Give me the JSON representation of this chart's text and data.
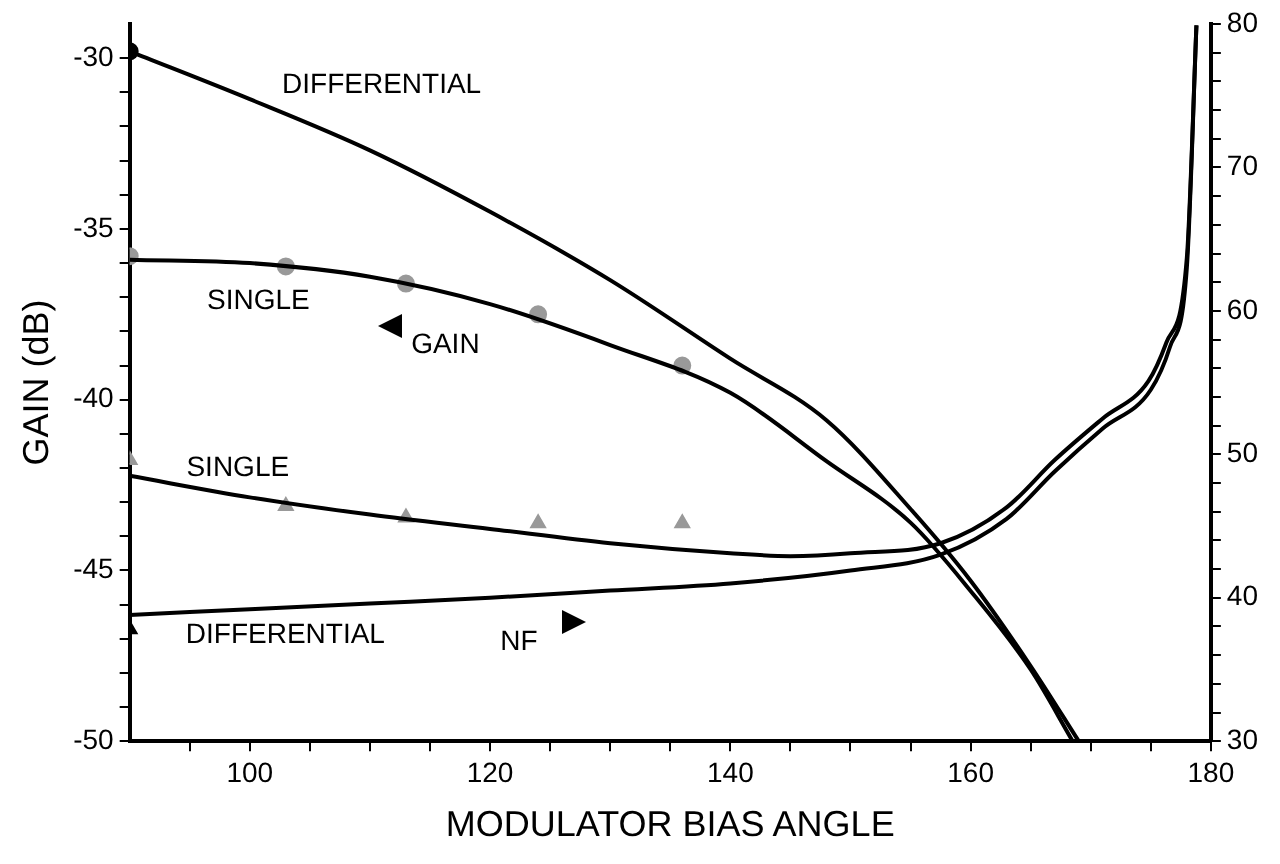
{
  "chart_data": {
    "type": "line",
    "xlabel": "MODULATOR BIAS ANGLE",
    "ylabel": "GAIN (dB)",
    "xlim": [
      90,
      180
    ],
    "xticks": [
      {
        "value": 95,
        "label": null
      },
      100,
      {
        "value": 105,
        "label": null
      },
      {
        "value": 110,
        "label": null
      },
      {
        "value": 115,
        "label": null
      },
      120,
      {
        "value": 125,
        "label": null
      },
      {
        "value": 130,
        "label": null
      },
      {
        "value": 135,
        "label": null
      },
      140,
      {
        "value": 145,
        "label": null
      },
      {
        "value": 150,
        "label": null
      },
      {
        "value": 155,
        "label": null
      },
      160,
      {
        "value": 165,
        "label": null
      },
      {
        "value": 170,
        "label": null
      },
      {
        "value": 175,
        "label": null
      },
      180
    ],
    "ylim": [
      -50,
      -29
    ],
    "yticks": [
      -50,
      {
        "value": -49,
        "label": null
      },
      {
        "value": -48,
        "label": null
      },
      {
        "value": -47,
        "label": null
      },
      {
        "value": -46,
        "label": null
      },
      -45,
      {
        "value": -44,
        "label": null
      },
      {
        "value": -43,
        "label": null
      },
      {
        "value": -42,
        "label": null
      },
      {
        "value": -41,
        "label": null
      },
      -40,
      {
        "value": -39,
        "label": null
      },
      {
        "value": -38,
        "label": null
      },
      {
        "value": -37,
        "label": null
      },
      {
        "value": -36,
        "label": null
      },
      -35,
      {
        "value": -34,
        "label": null
      },
      {
        "value": -33,
        "label": null
      },
      {
        "value": -32,
        "label": null
      },
      {
        "value": -31,
        "label": null
      },
      -30
    ],
    "y2lim": [
      30,
      80
    ],
    "y2ticks": [
      30,
      {
        "value": 32,
        "label": null
      },
      {
        "value": 34,
        "label": null
      },
      {
        "value": 36,
        "label": null
      },
      {
        "value": 38,
        "label": null
      },
      40,
      {
        "value": 42,
        "label": null
      },
      {
        "value": 44,
        "label": null
      },
      {
        "value": 46,
        "label": null
      },
      {
        "value": 48,
        "label": null
      },
      50,
      {
        "value": 52,
        "label": null
      },
      {
        "value": 54,
        "label": null
      },
      {
        "value": 56,
        "label": null
      },
      {
        "value": 58,
        "label": null
      },
      60,
      {
        "value": 62,
        "label": null
      },
      {
        "value": 64,
        "label": null
      },
      {
        "value": 66,
        "label": null
      },
      {
        "value": 68,
        "label": null
      },
      70,
      {
        "value": 72,
        "label": null
      },
      {
        "value": 74,
        "label": null
      },
      {
        "value": 76,
        "label": null
      },
      {
        "value": 78,
        "label": null
      },
      80
    ],
    "grid": false,
    "legend": false,
    "series": [
      {
        "type": "line",
        "color": "#000000",
        "marker": "none",
        "x": [
          90,
          100,
          110,
          120,
          130,
          140,
          148,
          155,
          160,
          165,
          169
        ],
        "values": [
          -29.8,
          -31.2,
          -32.7,
          -34.5,
          -36.5,
          -38.8,
          -40.6,
          -43.2,
          -45.3,
          -47.8,
          -50
        ]
      },
      {
        "type": "line",
        "color": "#000000",
        "marker": "none",
        "x": [
          90,
          100,
          110,
          120,
          130,
          140,
          148,
          155,
          160,
          165,
          168.5
        ],
        "values": [
          -35.9,
          -36.0,
          -36.4,
          -37.2,
          -38.4,
          -39.8,
          -41.8,
          -43.6,
          -45.6,
          -47.9,
          -50
        ]
      },
      {
        "type": "line",
        "axis": "y2",
        "color": "#000000",
        "marker": "none",
        "x": [
          90,
          100,
          110,
          120,
          130,
          140,
          145,
          150,
          157.5,
          163,
          167,
          171,
          174.8,
          176.3,
          178,
          178.8
        ],
        "values": [
          48.5,
          47.0,
          45.8,
          44.8,
          43.8,
          43.1,
          42.9,
          43.1,
          43.8,
          46.3,
          49.6,
          52.5,
          55.1,
          57.8,
          63.7,
          79.9
        ]
      },
      {
        "type": "line",
        "axis": "y2",
        "color": "#000000",
        "marker": "none",
        "x": [
          90,
          100,
          110,
          120,
          130,
          140,
          150,
          157.5,
          163,
          167,
          171,
          175,
          176.6,
          178,
          178.8
        ],
        "values": [
          38.8,
          39.2,
          39.6,
          40.0,
          40.5,
          41.0,
          41.9,
          43.0,
          45.5,
          48.8,
          51.8,
          54.5,
          57.5,
          63,
          79.9
        ]
      },
      {
        "type": "scatter",
        "color": "#000000",
        "marker": "circle",
        "x": [
          90
        ],
        "values": [
          -29.8
        ]
      },
      {
        "type": "scatter",
        "color": "#999999",
        "marker": "circle",
        "x": [
          90,
          103,
          113,
          124,
          136
        ],
        "values": [
          -35.8,
          -36.1,
          -36.6,
          -37.5,
          -39.0
        ]
      },
      {
        "type": "scatter",
        "axis": "y2",
        "color": "#999999",
        "marker": "triangle",
        "x": [
          90,
          103,
          113,
          124,
          136
        ],
        "values": [
          49.6,
          46.4,
          45.6,
          45.2,
          45.2
        ]
      },
      {
        "type": "scatter",
        "axis": "y2",
        "color": "#000000",
        "marker": "triangle",
        "x": [
          90
        ],
        "values": [
          37.8
        ]
      }
    ],
    "annotations": [
      "DIFFERENTIAL",
      "SINGLE",
      "GAIN",
      "SINGLE",
      "DIFFERENTIAL",
      "NF"
    ]
  }
}
